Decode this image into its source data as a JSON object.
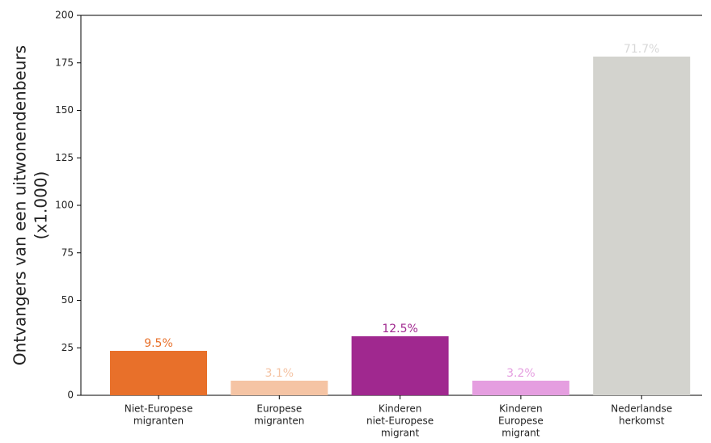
{
  "chart_data": {
    "type": "bar",
    "ylabel": [
      "Ontvangers van een uitwonendenbeurs",
      "(x1.000)"
    ],
    "categories": [
      [
        "Niet-Europese",
        "migranten"
      ],
      [
        "Europese",
        "migranten"
      ],
      [
        "Kinderen",
        "niet-Europese",
        "migrant"
      ],
      [
        "Kinderen",
        "Europese",
        "migrant"
      ],
      [
        "Nederlandse",
        "herkomst"
      ]
    ],
    "values": [
      23.4,
      7.7,
      31.1,
      7.7,
      178.3
    ],
    "annotations": [
      "9.5%",
      "3.1%",
      "12.5%",
      "3.2%",
      "71.7%"
    ],
    "colors": [
      "#e8702a",
      "#f5c4a4",
      "#a0288f",
      "#e59ee0",
      "#d3d3ce"
    ],
    "annotation_colors": [
      "#e8702a",
      "#f5c4a4",
      "#a0288f",
      "#e59ee0",
      "#d8d8d8"
    ],
    "ylim": [
      0,
      200
    ],
    "yticks": [
      0,
      25,
      50,
      75,
      100,
      125,
      150,
      175,
      200
    ]
  }
}
